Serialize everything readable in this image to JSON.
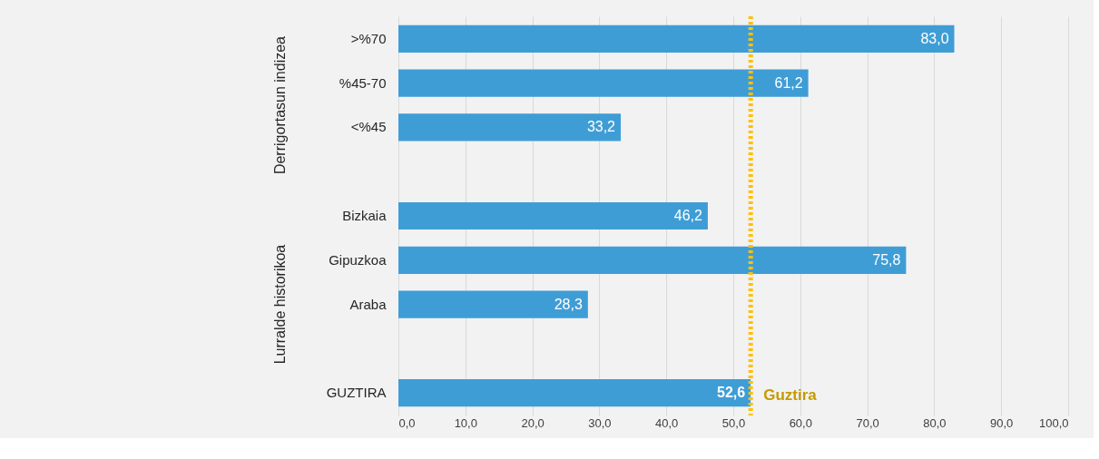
{
  "chart_data": {
    "type": "bar",
    "orientation": "horizontal",
    "categories": [
      ">%70",
      "%45-70",
      "<%45",
      null,
      "Bizkaia",
      "Gipuzkoa",
      "Araba",
      null,
      "GUZTIRA"
    ],
    "values": [
      83.0,
      61.2,
      33.2,
      null,
      46.2,
      75.8,
      28.3,
      null,
      52.6
    ],
    "value_labels": [
      "83,0",
      "61,2",
      "33,2",
      null,
      "46,2",
      "75,8",
      "28,3",
      null,
      "52,6"
    ],
    "color": "#3f9dd6",
    "xlim": [
      0,
      100
    ],
    "xticks": [
      {
        "value": 0,
        "label": "0,0"
      },
      {
        "value": 10,
        "label": "10,0"
      },
      {
        "value": 20,
        "label": "20,0"
      },
      {
        "value": 30,
        "label": "30,0"
      },
      {
        "value": 40,
        "label": "40,0"
      },
      {
        "value": 50,
        "label": "50,0"
      },
      {
        "value": 60,
        "label": "60,0"
      },
      {
        "value": 70,
        "label": "70,0"
      },
      {
        "value": 80,
        "label": "80,0"
      },
      {
        "value": 90,
        "label": "90,0"
      },
      {
        "value": 100,
        "label": "100,0"
      }
    ],
    "grid": "x",
    "ref_lines": [
      {
        "axis": "x",
        "value": 52.6,
        "label": "Guztira",
        "color": "#ffc000",
        "line_style": "dotted"
      }
    ],
    "annotations": [
      "Derrigortasun indizea",
      "Lurralde historikoa"
    ]
  }
}
